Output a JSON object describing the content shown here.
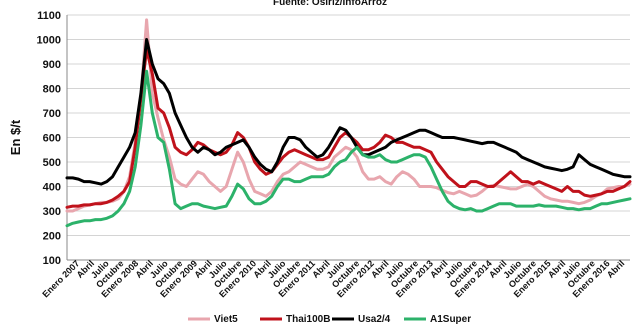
{
  "chart_data": {
    "type": "line",
    "subtitle": "Fuente: Osiriz/InfoArroz",
    "ylabel": "En $/t",
    "ylim": [
      100,
      1100
    ],
    "yticks": [
      100,
      200,
      300,
      400,
      500,
      600,
      700,
      800,
      900,
      1000,
      1100
    ],
    "grid": true,
    "legend_position": "bottom",
    "x_tick_labels": [
      "Enero 2007",
      "Abril",
      "Julio",
      "Octubre",
      "Enero 2008",
      "Abril",
      "Julio",
      "Octubre",
      "Enero 2009",
      "Abril",
      "Julio",
      "Octubre",
      "Enero 2010",
      "Abril",
      "Julio",
      "Octubre",
      "Enero 2011",
      "Abril",
      "Julio",
      "Octubre",
      "Enero 2012",
      "Abril",
      "Julio",
      "Octubre",
      "Enero 2013",
      "Abril",
      "Julio",
      "Octubre",
      "Enero 2014",
      "Abril",
      "Julio",
      "Octubre",
      "Enero 2015",
      "Abril",
      "Julio",
      "Octubre",
      "Enero 2016",
      "Abril"
    ],
    "series": [
      {
        "name": "Viet5",
        "color": "#e8a6ae",
        "values": [
          300,
          300,
          310,
          320,
          325,
          330,
          335,
          335,
          340,
          350,
          380,
          440,
          580,
          760,
          1080,
          780,
          680,
          590,
          520,
          430,
          410,
          400,
          430,
          460,
          450,
          420,
          400,
          380,
          400,
          470,
          540,
          500,
          430,
          380,
          370,
          360,
          380,
          420,
          450,
          460,
          480,
          500,
          490,
          480,
          470,
          470,
          480,
          520,
          540,
          560,
          550,
          520,
          460,
          430,
          430,
          440,
          420,
          410,
          440,
          460,
          450,
          430,
          400,
          400,
          400,
          395,
          385,
          375,
          370,
          380,
          370,
          360,
          365,
          380,
          400,
          405,
          400,
          395,
          390,
          390,
          400,
          410,
          400,
          380,
          360,
          350,
          345,
          340,
          340,
          335,
          330,
          335,
          345,
          360,
          370,
          390,
          395,
          400,
          400,
          410
        ]
      },
      {
        "name": "Thai100B",
        "color": "#c0121b",
        "values": [
          315,
          320,
          320,
          325,
          325,
          330,
          330,
          335,
          345,
          360,
          380,
          420,
          560,
          760,
          960,
          860,
          720,
          700,
          640,
          560,
          540,
          530,
          550,
          580,
          570,
          550,
          540,
          530,
          540,
          570,
          620,
          600,
          560,
          500,
          470,
          450,
          460,
          490,
          520,
          540,
          550,
          540,
          530,
          520,
          510,
          510,
          520,
          560,
          600,
          620,
          600,
          580,
          550,
          550,
          560,
          580,
          610,
          600,
          580,
          580,
          570,
          560,
          560,
          550,
          540,
          500,
          470,
          440,
          420,
          400,
          400,
          420,
          420,
          410,
          400,
          400,
          420,
          440,
          460,
          440,
          420,
          420,
          410,
          420,
          410,
          400,
          390,
          380,
          400,
          380,
          380,
          365,
          360,
          365,
          370,
          380,
          380,
          390,
          400,
          420
        ]
      },
      {
        "name": "Usa2/4",
        "color": "#000000",
        "values": [
          435,
          435,
          430,
          420,
          420,
          415,
          410,
          420,
          440,
          480,
          520,
          560,
          620,
          780,
          1000,
          900,
          840,
          820,
          780,
          700,
          650,
          600,
          560,
          540,
          560,
          550,
          530,
          540,
          560,
          570,
          580,
          590,
          560,
          520,
          490,
          470,
          460,
          500,
          560,
          600,
          600,
          590,
          560,
          540,
          520,
          530,
          560,
          600,
          640,
          630,
          600,
          560,
          530,
          530,
          540,
          550,
          560,
          580,
          590,
          600,
          610,
          620,
          630,
          630,
          620,
          610,
          600,
          600,
          600,
          595,
          590,
          585,
          580,
          575,
          580,
          580,
          570,
          560,
          550,
          540,
          520,
          510,
          500,
          490,
          480,
          475,
          470,
          465,
          470,
          480,
          530,
          510,
          490,
          480,
          470,
          460,
          450,
          445,
          440,
          440
        ]
      },
      {
        "name": "A1Super",
        "color": "#2cb26a",
        "values": [
          240,
          250,
          255,
          260,
          260,
          265,
          265,
          270,
          280,
          300,
          330,
          380,
          480,
          650,
          870,
          700,
          600,
          580,
          470,
          330,
          310,
          320,
          330,
          330,
          320,
          315,
          310,
          315,
          320,
          360,
          410,
          390,
          350,
          330,
          330,
          340,
          360,
          400,
          430,
          430,
          420,
          420,
          430,
          440,
          440,
          440,
          450,
          480,
          500,
          510,
          540,
          560,
          530,
          520,
          520,
          530,
          510,
          500,
          500,
          510,
          520,
          530,
          530,
          520,
          480,
          430,
          380,
          340,
          320,
          310,
          305,
          310,
          300,
          300,
          310,
          320,
          330,
          330,
          330,
          320,
          320,
          320,
          320,
          325,
          320,
          320,
          320,
          315,
          310,
          310,
          305,
          310,
          310,
          320,
          330,
          330,
          335,
          340,
          345,
          350
        ]
      }
    ]
  }
}
